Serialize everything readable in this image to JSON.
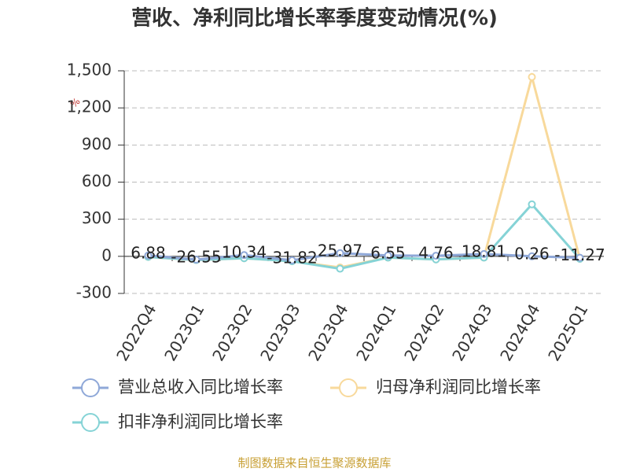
{
  "chart_data": {
    "type": "line",
    "title": "营收、净利同比增长率季度变动情况(%)",
    "y_unit": "%",
    "categories": [
      "2022Q4",
      "2023Q1",
      "2023Q2",
      "2023Q3",
      "2023Q4",
      "2024Q1",
      "2024Q2",
      "2024Q3",
      "2024Q4",
      "2025Q1"
    ],
    "series": [
      {
        "name": "营业总收入同比增长率",
        "color": "#8fa8d8",
        "values": [
          6.88,
          -26.55,
          10.34,
          -31.82,
          25.97,
          6.55,
          4.76,
          18.81,
          0.26,
          -11.27
        ]
      },
      {
        "name": "归母净利润同比增长率",
        "color": "#f8d99b",
        "values": [
          -5,
          -30,
          -15,
          -40,
          -90,
          -10,
          -25,
          -10,
          1450,
          -20
        ]
      },
      {
        "name": "扣非净利润同比增长率",
        "color": "#85d3d6",
        "values": [
          -5,
          -30,
          -15,
          -40,
          -100,
          -10,
          -25,
          -10,
          420,
          -20
        ]
      }
    ],
    "ylim": [
      -300,
      1500
    ],
    "yticks": [
      -300,
      0,
      300,
      600,
      900,
      {
        "value": 1200,
        "label": "1,200"
      },
      {
        "value": 1500,
        "label": "1,500"
      }
    ],
    "grid": true,
    "source": "制图数据来自恒生聚源数据库"
  }
}
